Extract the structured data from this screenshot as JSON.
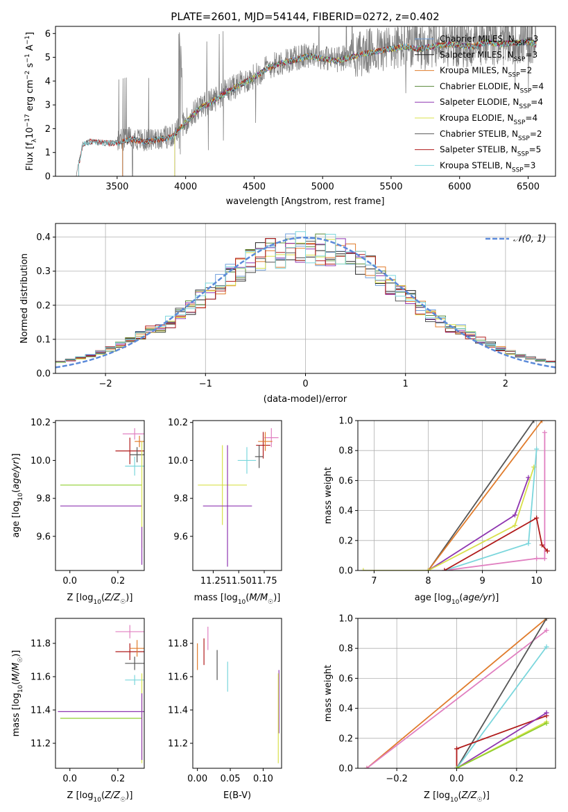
{
  "figure": {
    "title": "PLATE=2601, MJD=54144, FIBERID=0272, z=0.402"
  },
  "colors": {
    "Chabrier MILES": "#6f9fdc",
    "Salpeter MILES": "#222222",
    "Kroupa MILES": "#e07b2b",
    "Chabrier ELODIE": "#5a8a3a",
    "Salpeter ELODIE": "#8e35b0",
    "Kroupa ELODIE": "#d8e04a",
    "Chabrier STELIB": "#555555",
    "Salpeter STELIB": "#b01a1a",
    "Kroupa STELIB": "#7ad6dc",
    "pink": "#e07fc0",
    "lime": "#8fcf2f"
  },
  "chart_data": [
    {
      "id": "spectrum",
      "type": "line",
      "title": "PLATE=2601, MJD=54144, FIBERID=0272, z=0.402",
      "xlabel": "wavelength [Angstrom, rest frame]",
      "ylabel": "Flux [f_λ 10^-17 erg cm^-2 s^-1 A^-1]",
      "xlim": [
        3050,
        6700
      ],
      "ylim": [
        0,
        6.3
      ],
      "xticks": [
        3500,
        4000,
        4500,
        5000,
        5500,
        6000,
        6500
      ],
      "yticks": [
        0,
        1,
        2,
        3,
        4,
        5,
        6
      ],
      "legend_position": "top-right",
      "legend": [
        {
          "label": "Chabrier MILES, N",
          "sub": "SSP",
          "suffix": "=3",
          "series": "Chabrier MILES"
        },
        {
          "label": "Salpeter MILES, N",
          "sub": "SSP",
          "suffix": "=3",
          "series": "Salpeter MILES"
        },
        {
          "label": "Kroupa MILES, N",
          "sub": "SSP",
          "suffix": "=2",
          "series": "Kroupa MILES"
        },
        {
          "label": "Chabrier ELODIE, N",
          "sub": "SSP",
          "suffix": "=4",
          "series": "Chabrier ELODIE"
        },
        {
          "label": "Salpeter ELODIE, N",
          "sub": "SSP",
          "suffix": "=4",
          "series": "Salpeter ELODIE"
        },
        {
          "label": "Kroupa ELODIE, N",
          "sub": "SSP",
          "suffix": "=4",
          "series": "Kroupa ELODIE"
        },
        {
          "label": "Chabrier STELIB, N",
          "sub": "SSP",
          "suffix": "=2",
          "series": "Chabrier STELIB"
        },
        {
          "label": "Salpeter STELIB, N",
          "sub": "SSP",
          "suffix": "=5",
          "series": "Salpeter STELIB"
        },
        {
          "label": "Kroupa STELIB, N",
          "sub": "SSP",
          "suffix": "=3",
          "series": "Kroupa STELIB"
        }
      ],
      "data_anchor": {
        "x": [
          3200,
          3250,
          3300,
          3400,
          3500,
          3600,
          3700,
          3800,
          3900,
          4000,
          4100,
          4200,
          4300,
          4400,
          4500,
          4600,
          4700,
          4800,
          4900,
          5000,
          5100,
          5200,
          5300,
          5400,
          5500,
          5600,
          5700,
          5800,
          5900,
          6000,
          6100,
          6200,
          6300,
          6400,
          6500,
          6560
        ],
        "y": [
          0,
          1.4,
          1.5,
          1.45,
          1.45,
          1.6,
          1.5,
          1.6,
          1.7,
          2.3,
          2.9,
          3.2,
          3.6,
          3.9,
          4.2,
          4.6,
          4.8,
          4.95,
          5.1,
          5.0,
          4.9,
          5.05,
          5.2,
          5.3,
          5.4,
          5.5,
          5.4,
          5.5,
          5.6,
          5.55,
          5.5,
          5.7,
          5.6,
          5.65,
          5.7,
          5.6
        ]
      },
      "model_start": {
        "Chabrier MILES": 3540,
        "Salpeter MILES": 3540,
        "Kroupa MILES": 3540,
        "Chabrier ELODIE": 3920,
        "Salpeter ELODIE": 3920,
        "Kroupa ELODIE": 3920,
        "Chabrier STELIB": 3220,
        "Salpeter STELIB": 3220,
        "Kroupa STELIB": 3220
      },
      "data_color": "#808080"
    },
    {
      "id": "residuals",
      "type": "bar",
      "xlabel": "(data-model)/error",
      "ylabel": "Normed distribution",
      "xlim": [
        -2.5,
        2.5
      ],
      "ylim": [
        0,
        0.44
      ],
      "xticks": [
        -2,
        -1,
        0,
        1,
        2
      ],
      "yticks": [
        0.0,
        0.1,
        0.2,
        0.3,
        0.4
      ],
      "grid": true,
      "legend_position": "top-right",
      "reference_label": "𝒩(0, 1)",
      "reference_color": "#5b8ad9",
      "bin_width": 0.1,
      "series": [
        "Chabrier MILES",
        "Salpeter MILES",
        "Kroupa MILES",
        "Chabrier ELODIE",
        "Salpeter ELODIE",
        "Kroupa ELODIE",
        "Chabrier STELIB",
        "Salpeter STELIB",
        "Kroupa STELIB"
      ]
    },
    {
      "id": "age_vs_Z",
      "type": "scatter",
      "xlabel": "Z [log10(Z/Z☉)]",
      "ylabel": "age [log10(age/yr)]",
      "xlim": [
        -0.06,
        0.31
      ],
      "ylim": [
        9.42,
        10.21
      ],
      "xticks": [
        0.0,
        0.2
      ],
      "yticks": [
        9.6,
        9.8,
        10.0,
        10.2
      ],
      "grid": false,
      "points": [
        {
          "series": "Salpeter STELIB",
          "x": 0.25,
          "y": 10.05,
          "xerr": 0.06,
          "yerr": 0.07
        },
        {
          "series": "Kroupa STELIB",
          "x": 0.27,
          "y": 9.97,
          "xerr": 0.04,
          "yerr": 0.05
        },
        {
          "series": "pink",
          "x": 0.27,
          "y": 10.14,
          "xerr": 0.05,
          "yerr": 0.03
        },
        {
          "series": "Kroupa MILES",
          "x": 0.29,
          "y": 10.1,
          "xerr": 0.02,
          "yerr": 0.03
        },
        {
          "series": "Chabrier STELIB",
          "x": 0.28,
          "y": 10.03,
          "xerr": 0.03,
          "yerr": 0.04
        },
        {
          "series": "lime",
          "x": 0.13,
          "y": 9.87,
          "xerr": 0.17,
          "yerr": 0.0
        },
        {
          "series": "Salpeter ELODIE",
          "x": 0.13,
          "y": 9.76,
          "xerr": 0.17,
          "yerr": 0.0
        },
        {
          "series": "Kroupa ELODIE",
          "x": 0.3,
          "y": 9.82,
          "xerr": 0.0,
          "yerr": 0.28
        },
        {
          "series": "Salpeter ELODIE",
          "x": 0.3,
          "y": 9.55,
          "xerr": 0.0,
          "yerr": 0.1
        }
      ]
    },
    {
      "id": "age_vs_mass",
      "type": "scatter",
      "xlabel": "mass [log10(M/M☉)]",
      "ylabel": "",
      "xlim": [
        11.05,
        11.92
      ],
      "ylim": [
        9.42,
        10.21
      ],
      "xticks": [
        11.25,
        11.5,
        11.75
      ],
      "yticks": [
        9.6,
        9.8,
        10.0,
        10.2
      ],
      "grid": false,
      "points": [
        {
          "series": "Kroupa ELODIE",
          "x": 11.34,
          "y": 9.87,
          "xerr": 0.24,
          "yerr": 0.21
        },
        {
          "series": "Salpeter ELODIE",
          "x": 11.39,
          "y": 9.76,
          "xerr": 0.24,
          "yerr": 0.32
        },
        {
          "series": "Kroupa STELIB",
          "x": 11.58,
          "y": 10.0,
          "xerr": 0.09,
          "yerr": 0.07
        },
        {
          "series": "Salpeter STELIB",
          "x": 11.74,
          "y": 10.08,
          "xerr": 0.07,
          "yerr": 0.07
        },
        {
          "series": "pink",
          "x": 11.82,
          "y": 10.12,
          "xerr": 0.07,
          "yerr": 0.05
        },
        {
          "series": "Kroupa MILES",
          "x": 11.76,
          "y": 10.1,
          "xerr": 0.07,
          "yerr": 0.05
        },
        {
          "series": "Chabrier STELIB",
          "x": 11.7,
          "y": 10.02,
          "xerr": 0.04,
          "yerr": 0.06
        }
      ]
    },
    {
      "id": "massweight_vs_age",
      "type": "line",
      "xlabel": "age [log10(age/yr)]",
      "ylabel": "mass weight",
      "xlim": [
        6.7,
        10.35
      ],
      "ylim": [
        0,
        1
      ],
      "xticks": [
        7,
        8,
        9,
        10
      ],
      "yticks": [
        0.0,
        0.2,
        0.4,
        0.6,
        0.8,
        1.0
      ],
      "grid": true,
      "series": [
        {
          "series": "Chabrier STELIB",
          "x": [
            8.0,
            9.95
          ],
          "y": [
            0.0,
            1.0
          ]
        },
        {
          "series": "Kroupa MILES",
          "x": [
            8.0,
            10.1
          ],
          "y": [
            0.0,
            1.0
          ]
        },
        {
          "series": "pink",
          "x": [
            8.3,
            10.0,
            10.15,
            10.15
          ],
          "y": [
            0.0,
            0.08,
            0.08,
            0.92
          ]
        },
        {
          "series": "Salpeter ELODIE",
          "x": [
            8.0,
            9.6,
            9.85
          ],
          "y": [
            0.0,
            0.37,
            0.62
          ]
        },
        {
          "series": "Kroupa ELODIE",
          "x": [
            6.8,
            8.0,
            9.6,
            9.95
          ],
          "y": [
            0.0,
            0.0,
            0.3,
            0.69
          ]
        },
        {
          "series": "Kroupa STELIB",
          "x": [
            8.3,
            9.85,
            10.0
          ],
          "y": [
            0.0,
            0.18,
            0.81
          ]
        },
        {
          "series": "Salpeter STELIB",
          "x": [
            8.3,
            10.0,
            10.1,
            10.2
          ],
          "y": [
            0.0,
            0.35,
            0.17,
            0.13
          ]
        }
      ]
    },
    {
      "id": "mass_vs_Z",
      "type": "scatter",
      "xlabel": "Z [log10(Z/Z☉)]",
      "ylabel": "mass [log10(M/M☉)]",
      "xlim": [
        -0.06,
        0.31
      ],
      "ylim": [
        11.05,
        11.95
      ],
      "xticks": [
        0.0,
        0.2
      ],
      "yticks": [
        11.2,
        11.4,
        11.6,
        11.8
      ],
      "grid": false,
      "points": [
        {
          "series": "pink",
          "x": 0.25,
          "y": 11.87,
          "xerr": 0.06,
          "yerr": 0.04
        },
        {
          "series": "Salpeter STELIB",
          "x": 0.25,
          "y": 11.75,
          "xerr": 0.06,
          "yerr": 0.05
        },
        {
          "series": "Kroupa MILES",
          "x": 0.28,
          "y": 11.77,
          "xerr": 0.03,
          "yerr": 0.05
        },
        {
          "series": "Chabrier STELIB",
          "x": 0.27,
          "y": 11.68,
          "xerr": 0.04,
          "yerr": 0.04
        },
        {
          "series": "Kroupa STELIB",
          "x": 0.27,
          "y": 11.58,
          "xerr": 0.04,
          "yerr": 0.03
        },
        {
          "series": "Salpeter ELODIE",
          "x": 0.13,
          "y": 11.39,
          "xerr": 0.18,
          "yerr": 0.0
        },
        {
          "series": "lime",
          "x": 0.13,
          "y": 11.35,
          "xerr": 0.17,
          "yerr": 0.0
        },
        {
          "series": "Kroupa ELODIE",
          "x": 0.3,
          "y": 11.35,
          "xerr": 0.0,
          "yerr": 0.27
        },
        {
          "series": "Salpeter ELODIE",
          "x": 0.3,
          "y": 11.3,
          "xerr": 0.0,
          "yerr": 0.2
        }
      ]
    },
    {
      "id": "mass_vs_EBV",
      "type": "scatter",
      "xlabel": "E(B-V)",
      "ylabel": "",
      "xlim": [
        -0.007,
        0.128
      ],
      "ylim": [
        11.05,
        11.95
      ],
      "xticks": [
        0.0,
        0.05,
        0.1
      ],
      "yticks": [
        11.2,
        11.4,
        11.6,
        11.8
      ],
      "grid": false,
      "points": [
        {
          "series": "Kroupa MILES",
          "x": 0.0,
          "y": 11.72,
          "xerr": 0.0,
          "yerr": 0.08
        },
        {
          "series": "Salpeter STELIB",
          "x": 0.01,
          "y": 11.75,
          "xerr": 0.0,
          "yerr": 0.08
        },
        {
          "series": "pink",
          "x": 0.016,
          "y": 11.83,
          "xerr": 0.0,
          "yerr": 0.07
        },
        {
          "series": "Chabrier STELIB",
          "x": 0.03,
          "y": 11.67,
          "xerr": 0.0,
          "yerr": 0.09
        },
        {
          "series": "Kroupa STELIB",
          "x": 0.046,
          "y": 11.6,
          "xerr": 0.0,
          "yerr": 0.09
        },
        {
          "series": "Salpeter ELODIE",
          "x": 0.124,
          "y": 11.45,
          "xerr": 0.0,
          "yerr": 0.19
        },
        {
          "series": "Kroupa ELODIE",
          "x": 0.123,
          "y": 11.35,
          "xerr": 0.0,
          "yerr": 0.27
        }
      ]
    },
    {
      "id": "massweight_vs_Z",
      "type": "line",
      "xlabel": "Z [log10(Z/Z☉)]",
      "ylabel": "mass weight",
      "xlim": [
        -0.33,
        0.33
      ],
      "ylim": [
        0,
        1
      ],
      "xticks": [
        -0.2,
        0.0,
        0.2
      ],
      "yticks": [
        0.0,
        0.2,
        0.4,
        0.6,
        0.8,
        1.0
      ],
      "grid": true,
      "series": [
        {
          "series": "Kroupa MILES",
          "x": [
            -0.3,
            0.3
          ],
          "y": [
            0.0,
            1.0
          ]
        },
        {
          "series": "pink",
          "x": [
            -0.3,
            0.3
          ],
          "y": [
            0.0,
            0.92
          ]
        },
        {
          "series": "Chabrier STELIB",
          "x": [
            0.0,
            0.3
          ],
          "y": [
            0.0,
            1.0
          ]
        },
        {
          "series": "Kroupa STELIB",
          "x": [
            0.0,
            0.3
          ],
          "y": [
            0.0,
            0.81
          ]
        },
        {
          "series": "Salpeter STELIB",
          "x": [
            0.0,
            0.0,
            0.3
          ],
          "y": [
            0.0,
            0.13,
            0.35
          ]
        },
        {
          "series": "Salpeter ELODIE",
          "x": [
            0.0,
            0.3
          ],
          "y": [
            0.0,
            0.37
          ]
        },
        {
          "series": "Kroupa ELODIE",
          "x": [
            0.0,
            0.3
          ],
          "y": [
            0.0,
            0.31
          ]
        },
        {
          "series": "lime",
          "x": [
            0.0,
            0.3
          ],
          "y": [
            0.0,
            0.3
          ]
        }
      ]
    }
  ]
}
